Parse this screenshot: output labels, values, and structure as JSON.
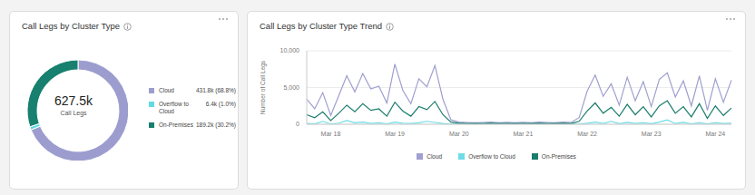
{
  "chart_data": [
    {
      "type": "donut",
      "title": "Call Legs by Cluster Type",
      "categories": [
        "Cloud",
        "Overflow to Cloud",
        "On-Premises"
      ],
      "values": [
        431800,
        6400,
        189200
      ],
      "value_labels": [
        "431.8k (68.8%)",
        "6.4k (1.0%)",
        "189.2k (30.2%)"
      ],
      "colors": [
        "#9c9dce",
        "#62d9e3",
        "#17806f"
      ],
      "center_text": [
        "627.5k",
        "Call Legs"
      ],
      "legend": "right"
    },
    {
      "type": "line",
      "title": "Call Legs by Cluster Type Trend",
      "y_label": "Number of Call Legs",
      "categories": [
        null,
        null,
        null,
        "Mar 18",
        null,
        null,
        null,
        null,
        null,
        null,
        null,
        "Mar 19",
        null,
        null,
        null,
        null,
        null,
        null,
        null,
        "Mar 20",
        null,
        null,
        null,
        null,
        null,
        null,
        null,
        "Mar 21",
        null,
        null,
        null,
        null,
        null,
        null,
        null,
        "Mar 22",
        null,
        null,
        null,
        null,
        null,
        null,
        null,
        "Mar 23",
        null,
        null,
        null,
        null,
        null,
        null,
        null,
        "Mar 24",
        null,
        null
      ],
      "series": [
        {
          "name": "Cloud",
          "color": "#a09fd0",
          "values": [
            3400,
            2100,
            4300,
            1200,
            3900,
            6600,
            4400,
            6900,
            4800,
            5200,
            2900,
            8200,
            4600,
            2800,
            6200,
            5100,
            8000,
            3400,
            600,
            300,
            250,
            200,
            250,
            300,
            200,
            250,
            200,
            250,
            200,
            300,
            250,
            200,
            300,
            250,
            900,
            4500,
            6700,
            3800,
            5500,
            2600,
            6400,
            3200,
            5800,
            2400,
            6100,
            7000,
            3700,
            5900,
            2500,
            6600,
            1900,
            6200,
            3000,
            6000
          ]
        },
        {
          "name": "Overflow to Cloud",
          "color": "#6cdde6",
          "values": [
            100,
            50,
            400,
            30,
            150,
            500,
            200,
            300,
            100,
            200,
            50,
            300,
            150,
            100,
            200,
            400,
            250,
            100,
            20,
            10,
            10,
            10,
            10,
            10,
            10,
            10,
            10,
            10,
            10,
            10,
            10,
            10,
            10,
            10,
            30,
            150,
            300,
            100,
            400,
            80,
            250,
            100,
            200,
            80,
            300,
            600,
            100,
            250,
            60,
            200,
            50,
            200,
            100,
            150
          ]
        },
        {
          "name": "On-Premises",
          "color": "#1b7d6d",
          "values": [
            1300,
            900,
            1700,
            500,
            1500,
            2600,
            1700,
            2800,
            1900,
            2100,
            1100,
            3000,
            1800,
            1100,
            2400,
            2000,
            3100,
            1300,
            300,
            150,
            120,
            100,
            120,
            150,
            100,
            120,
            100,
            120,
            100,
            150,
            120,
            100,
            150,
            120,
            400,
            1800,
            2900,
            1500,
            2300,
            1100,
            2700,
            1300,
            2400,
            1000,
            2500,
            3200,
            1500,
            2400,
            1000,
            2800,
            800,
            2500,
            1200,
            2200
          ]
        }
      ],
      "ylim": [
        0,
        10000
      ],
      "yticks": [
        0,
        {
          "value": 5000,
          "label": "5,000"
        },
        {
          "value": 10000,
          "label": "10,000"
        }
      ],
      "grid": true,
      "legend": "bottom"
    }
  ]
}
